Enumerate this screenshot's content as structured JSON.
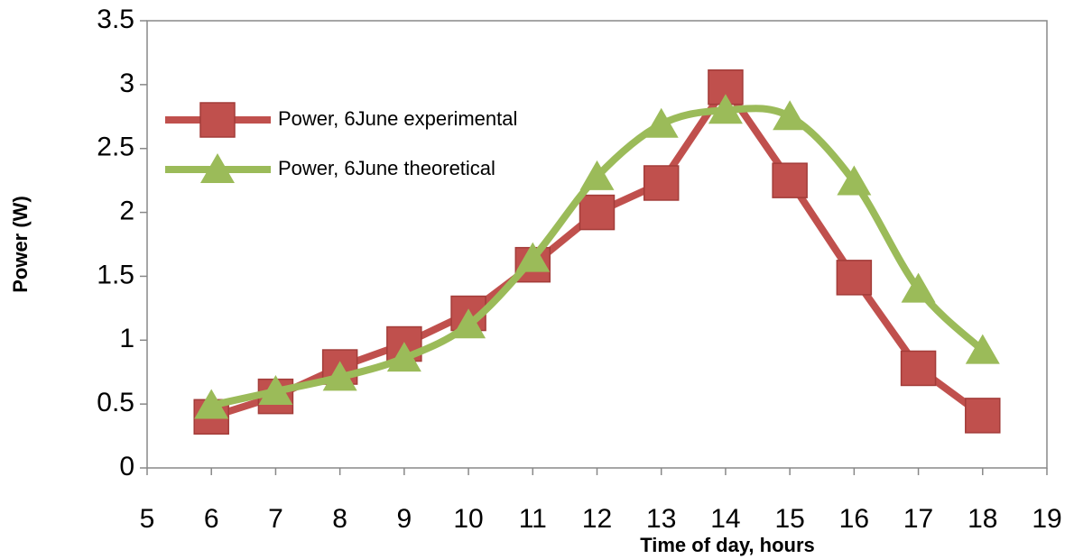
{
  "chart_data": {
    "type": "line",
    "xlabel": "Time of day, hours",
    "ylabel": "Power (W)",
    "x": [
      6,
      7,
      8,
      9,
      10,
      11,
      12,
      13,
      14,
      15,
      16,
      17,
      18
    ],
    "series": [
      {
        "name": "Power, 6June experimental",
        "color": "#c0504d",
        "marker": "square",
        "smooth": false,
        "values": [
          0.4,
          0.56,
          0.79,
          0.97,
          1.21,
          1.59,
          2.0,
          2.23,
          2.98,
          2.25,
          1.49,
          0.78,
          0.41
        ]
      },
      {
        "name": "Power,  6June theoretical",
        "color": "#9bbb59",
        "marker": "triangle",
        "smooth": true,
        "values": [
          0.49,
          0.6,
          0.71,
          0.86,
          1.12,
          1.64,
          2.28,
          2.69,
          2.8,
          2.75,
          2.24,
          1.4,
          0.92
        ]
      }
    ],
    "xlim": [
      5,
      19
    ],
    "xticks": [
      5,
      6,
      7,
      8,
      9,
      10,
      11,
      12,
      13,
      14,
      15,
      16,
      17,
      18,
      19
    ],
    "ylim": [
      0,
      3.5
    ],
    "yticks": [
      0,
      0.5,
      1,
      1.5,
      2,
      2.5,
      3,
      3.5
    ],
    "legend": "upper left"
  }
}
